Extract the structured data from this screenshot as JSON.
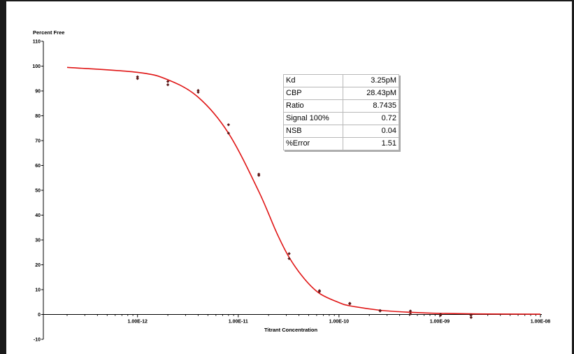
{
  "chart_data": {
    "type": "scatter",
    "ylabel": "Percent Free",
    "xlabel": "Titrant Concentration",
    "x_scale": "log",
    "xlim": [
      2e-13,
      1e-08
    ],
    "ylim": [
      -10,
      110
    ],
    "y_ticks": [
      110,
      100,
      90,
      80,
      70,
      60,
      50,
      40,
      30,
      20,
      10,
      0,
      -10
    ],
    "x_ticks": [
      {
        "value": 1e-12,
        "label": "1.00E-12"
      },
      {
        "value": 1e-11,
        "label": "1.00E-11"
      },
      {
        "value": 1e-10,
        "label": "1.00E-10"
      },
      {
        "value": 1e-09,
        "label": "1.00E-09"
      },
      {
        "value": 1e-08,
        "label": "1.00E-08"
      }
    ],
    "points": [
      {
        "x": 1e-12,
        "y": 95.7
      },
      {
        "x": 1e-12,
        "y": 95.0
      },
      {
        "x": 2e-12,
        "y": 93.8
      },
      {
        "x": 2e-12,
        "y": 92.5
      },
      {
        "x": 4e-12,
        "y": 90.2
      },
      {
        "x": 4e-12,
        "y": 89.5
      },
      {
        "x": 8e-12,
        "y": 76.4
      },
      {
        "x": 8e-12,
        "y": 73.0
      },
      {
        "x": 1.6e-11,
        "y": 56.5
      },
      {
        "x": 1.6e-11,
        "y": 56.0
      },
      {
        "x": 3.2e-11,
        "y": 24.5
      },
      {
        "x": 3.2e-11,
        "y": 22.5
      },
      {
        "x": 6.4e-11,
        "y": 9.6
      },
      {
        "x": 6.4e-11,
        "y": 9.2
      },
      {
        "x": 1.28e-10,
        "y": 4.5
      },
      {
        "x": 1.28e-10,
        "y": 4.3
      },
      {
        "x": 2.56e-10,
        "y": 1.6
      },
      {
        "x": 2.56e-10,
        "y": 1.4
      },
      {
        "x": 5.12e-10,
        "y": 1.4
      },
      {
        "x": 5.12e-10,
        "y": 0.2
      },
      {
        "x": 1.02e-09,
        "y": 0.0
      },
      {
        "x": 1.02e-09,
        "y": -0.3
      },
      {
        "x": 2.05e-09,
        "y": -0.2
      },
      {
        "x": 2.05e-09,
        "y": -1.2
      }
    ],
    "fit_curve": [
      {
        "x": 2e-13,
        "y": 99.5
      },
      {
        "x": 1e-12,
        "y": 97.5
      },
      {
        "x": 2e-12,
        "y": 94.5
      },
      {
        "x": 4e-12,
        "y": 87.5
      },
      {
        "x": 8e-12,
        "y": 73.0
      },
      {
        "x": 1.6e-11,
        "y": 49.5
      },
      {
        "x": 2.4e-11,
        "y": 33.0
      },
      {
        "x": 3.2e-11,
        "y": 23.0
      },
      {
        "x": 4.5e-11,
        "y": 14.5
      },
      {
        "x": 6.4e-11,
        "y": 8.5
      },
      {
        "x": 1e-10,
        "y": 4.8
      },
      {
        "x": 1.28e-10,
        "y": 3.5
      },
      {
        "x": 2.56e-10,
        "y": 1.7
      },
      {
        "x": 5e-10,
        "y": 0.9
      },
      {
        "x": 1e-09,
        "y": 0.45
      },
      {
        "x": 3e-09,
        "y": 0.2
      },
      {
        "x": 1e-08,
        "y": 0.1
      }
    ],
    "colors": {
      "points": "#5c1a1a",
      "curve": "#e01515",
      "axis": "#000000"
    }
  },
  "stats": [
    {
      "label": "Kd",
      "value": "3.25pM"
    },
    {
      "label": "CBP",
      "value": "28.43pM"
    },
    {
      "label": "Ratio",
      "value": "8.7435"
    },
    {
      "label": "Signal 100%",
      "value": "0.72"
    },
    {
      "label": "NSB",
      "value": "0.04"
    },
    {
      "label": "%Error",
      "value": "1.51"
    }
  ]
}
